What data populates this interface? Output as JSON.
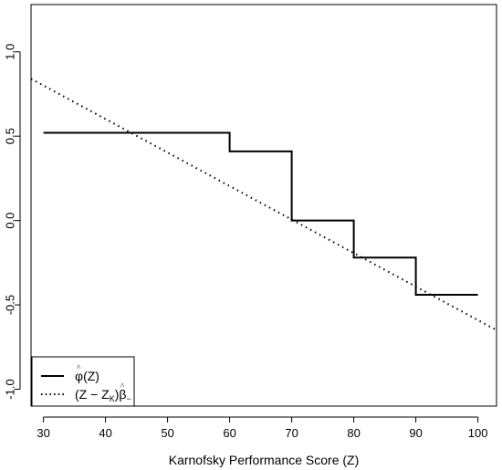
{
  "chart_data": {
    "type": "line",
    "xlabel": "Karnofsky Performance Score (Z)",
    "ylabel": "",
    "xlim": [
      28,
      103
    ],
    "ylim": [
      -1.1,
      1.28
    ],
    "x_ticks": [
      30,
      40,
      50,
      60,
      70,
      80,
      90,
      100
    ],
    "y_ticks": [
      -1.0,
      -0.5,
      0.0,
      0.5,
      1.0
    ],
    "x_tick_labels": [
      "30",
      "40",
      "50",
      "60",
      "70",
      "80",
      "90",
      "100"
    ],
    "y_tick_labels": [
      "-1.0",
      "-0.5",
      "0.0",
      "0.5",
      "1.0"
    ],
    "grid": false,
    "legend_position": "bottom-left",
    "series": [
      {
        "name": "φ̂(Z)",
        "style": "step-solid",
        "color": "#000000",
        "x": [
          30,
          60,
          70,
          80,
          90,
          100
        ],
        "y": [
          0.52,
          0.41,
          0.0,
          -0.22,
          -0.44,
          -0.44
        ]
      },
      {
        "name": "(Z − Z_K)β̂₋",
        "style": "dotted",
        "color": "#000000",
        "x": [
          28,
          103
        ],
        "y": [
          0.84,
          -0.65
        ]
      }
    ],
    "legend": {
      "solid_main": "φ",
      "solid_hat": "^",
      "solid_arg": "(Z)",
      "dotted_main": "(Z − Z",
      "dotted_sub": "K",
      "dotted_close": ")",
      "dotted_beta": "β",
      "dotted_hat": "^",
      "dotted_minus": "−"
    }
  }
}
